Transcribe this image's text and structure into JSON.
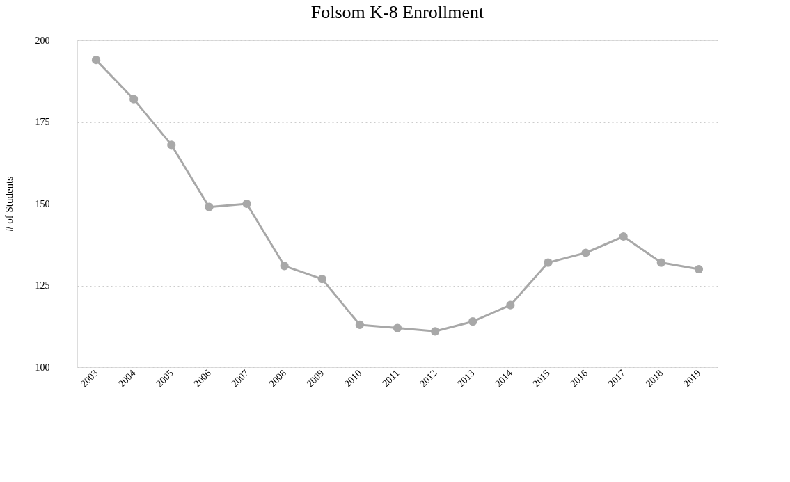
{
  "chart_data": {
    "type": "line",
    "title": "Folsom K-8 Enrollment",
    "ylabel": "# of Students",
    "categories": [
      "2003",
      "2004",
      "2005",
      "2006",
      "2007",
      "2008",
      "2009",
      "2010",
      "2011",
      "2012",
      "2013",
      "2014",
      "2015",
      "2016",
      "2017",
      "2018",
      "2019"
    ],
    "series": [
      {
        "color": "#a8a8a8",
        "values": [
          194,
          182,
          168,
          149,
          150,
          131,
          127,
          113,
          112,
          111,
          114,
          119,
          132,
          135,
          140,
          132,
          130
        ]
      }
    ],
    "ylim": [
      100,
      200
    ],
    "yticks": [
      100,
      125,
      150,
      175,
      200
    ],
    "grid": "y",
    "marker": "circle",
    "line_style": "solid"
  }
}
